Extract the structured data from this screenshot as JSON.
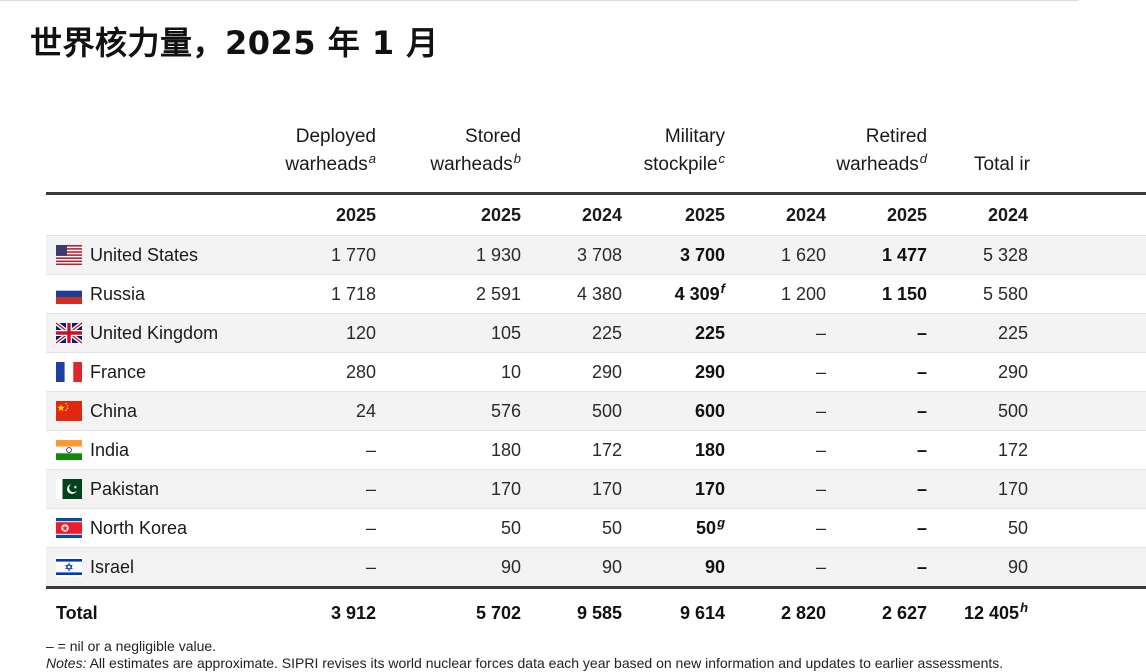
{
  "title": "世界核力量，2025 年 1 月",
  "columns": {
    "deployed": {
      "line1": "Deployed",
      "line2": "warheads",
      "note": "a"
    },
    "stored": {
      "line1": "Stored",
      "line2": "warheads",
      "note": "b"
    },
    "military": {
      "line1": "Military",
      "line2": "stockpile",
      "note": "c"
    },
    "retired": {
      "line1": "Retired",
      "line2": "warheads",
      "note": "d"
    },
    "total": {
      "line1": "",
      "line2": "Total ir"
    }
  },
  "years": [
    "2025",
    "2025",
    "2024",
    "2025",
    "2024",
    "2025",
    "2024"
  ],
  "rows": [
    {
      "country": "United States",
      "flag": "us-flag-icon",
      "deployed": "1 770",
      "stored": "1 930",
      "mil2024": "3 708",
      "mil2025": "3 700",
      "ret2024": "1 620",
      "ret2025": "1 477",
      "total2024": "5 328"
    },
    {
      "country": "Russia",
      "flag": "russia-flag-icon",
      "deployed": "1 718",
      "stored": "2 591",
      "mil2024": "4 380",
      "mil2025": "4 309",
      "mil2025_note": "f",
      "ret2024": "1 200",
      "ret2025": "1 150",
      "total2024": "5 580"
    },
    {
      "country": "United Kingdom",
      "flag": "uk-flag-icon",
      "deployed": "120",
      "stored": "105",
      "mil2024": "225",
      "mil2025": "225",
      "ret2024": "–",
      "ret2025": "–",
      "total2024": "225"
    },
    {
      "country": "France",
      "flag": "france-flag-icon",
      "deployed": "280",
      "stored": "10",
      "mil2024": "290",
      "mil2025": "290",
      "ret2024": "–",
      "ret2025": "–",
      "total2024": "290"
    },
    {
      "country": "China",
      "flag": "china-flag-icon",
      "deployed": "24",
      "stored": "576",
      "mil2024": "500",
      "mil2025": "600",
      "ret2024": "–",
      "ret2025": "–",
      "total2024": "500"
    },
    {
      "country": "India",
      "flag": "india-flag-icon",
      "deployed": "–",
      "stored": "180",
      "mil2024": "172",
      "mil2025": "180",
      "ret2024": "–",
      "ret2025": "–",
      "total2024": "172"
    },
    {
      "country": "Pakistan",
      "flag": "pakistan-flag-icon",
      "deployed": "–",
      "stored": "170",
      "mil2024": "170",
      "mil2025": "170",
      "ret2024": "–",
      "ret2025": "–",
      "total2024": "170"
    },
    {
      "country": "North Korea",
      "flag": "north-korea-flag-icon",
      "deployed": "–",
      "stored": "50",
      "mil2024": "50",
      "mil2025": "50",
      "mil2025_note": "g",
      "ret2024": "–",
      "ret2025": "–",
      "total2024": "50"
    },
    {
      "country": "Israel",
      "flag": "israel-flag-icon",
      "deployed": "–",
      "stored": "90",
      "mil2024": "90",
      "mil2025": "90",
      "ret2024": "–",
      "ret2025": "–",
      "total2024": "90"
    }
  ],
  "total": {
    "label": "Total",
    "deployed": "3 912",
    "stored": "5 702",
    "mil2024": "9 585",
    "mil2025": "9 614",
    "ret2024": "2 820",
    "ret2025": "2 627",
    "total2024": "12 405",
    "total2024_note": "h"
  },
  "notes": {
    "line1": "– = nil or a negligible value.",
    "line2_label": "Notes:",
    "line2_text": " All estimates are approximate. SIPRI revises its world nuclear forces data each year based on new information and updates to earlier assessments."
  },
  "colors": {
    "rule": "#3a3a3a",
    "shade": "#f3f3f3"
  }
}
